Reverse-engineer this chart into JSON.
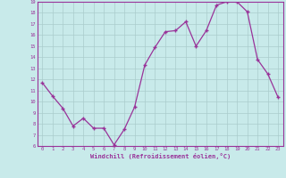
{
  "x": [
    0,
    1,
    2,
    3,
    4,
    5,
    6,
    7,
    8,
    9,
    10,
    11,
    12,
    13,
    14,
    15,
    16,
    17,
    18,
    19,
    20,
    21,
    22,
    23
  ],
  "y": [
    11.7,
    10.5,
    9.4,
    7.8,
    8.5,
    7.6,
    7.6,
    6.1,
    7.5,
    9.5,
    13.3,
    14.9,
    16.3,
    16.4,
    17.2,
    15.0,
    16.4,
    18.7,
    19.0,
    19.0,
    18.1,
    13.8,
    12.5,
    10.4
  ],
  "line_color": "#993399",
  "marker": "+",
  "marker_color": "#993399",
  "bg_color": "#c8eaea",
  "grid_color": "#aacccc",
  "xlabel": "Windchill (Refroidissement éolien,°C)",
  "xlabel_color": "#993399",
  "tick_color": "#993399",
  "ylim": [
    6,
    19
  ],
  "xlim": [
    -0.5,
    23.5
  ],
  "yticks": [
    6,
    7,
    8,
    9,
    10,
    11,
    12,
    13,
    14,
    15,
    16,
    17,
    18,
    19
  ],
  "xticks": [
    0,
    1,
    2,
    3,
    4,
    5,
    6,
    7,
    8,
    9,
    10,
    11,
    12,
    13,
    14,
    15,
    16,
    17,
    18,
    19,
    20,
    21,
    22,
    23
  ]
}
